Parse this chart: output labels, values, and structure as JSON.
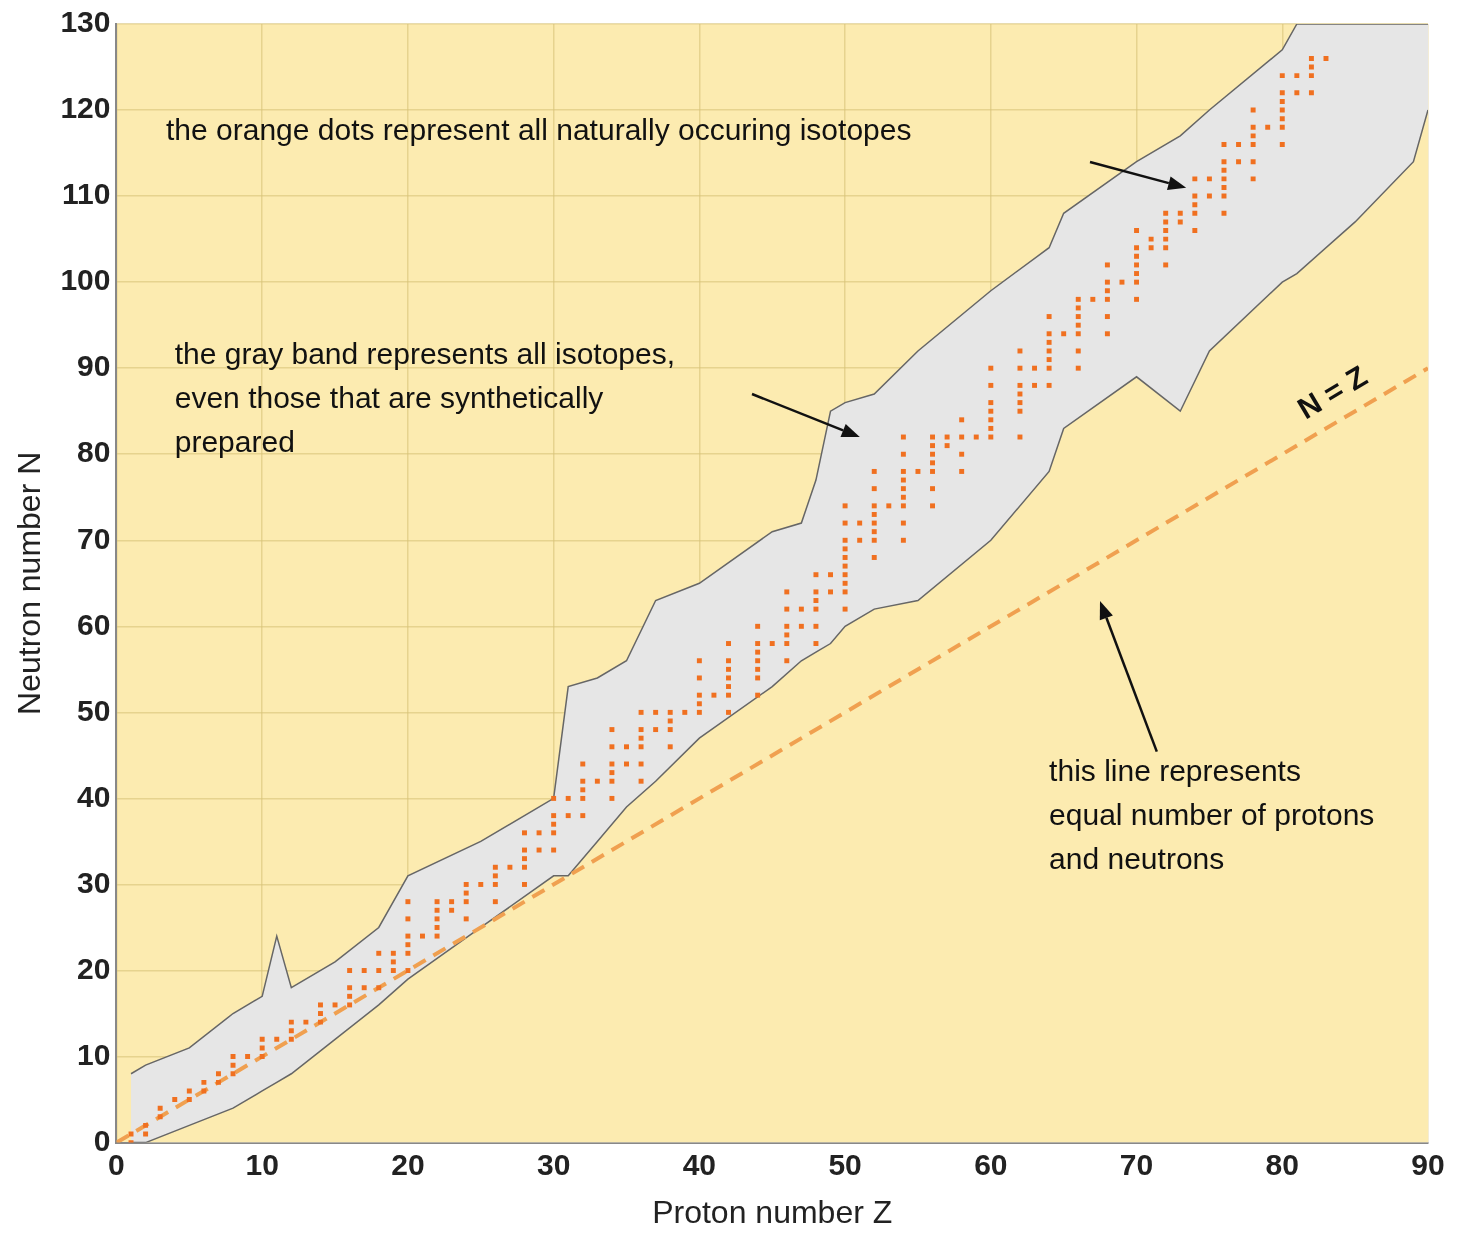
{
  "chart_data": {
    "type": "scatter",
    "xlabel": "Proton number Z",
    "ylabel": "Neutron number N",
    "xlim": [
      0,
      90
    ],
    "ylim": [
      0,
      130
    ],
    "xticks": [
      0,
      10,
      20,
      30,
      40,
      50,
      60,
      70,
      80,
      90
    ],
    "yticks": [
      0,
      10,
      20,
      30,
      40,
      50,
      60,
      70,
      80,
      90,
      100,
      110,
      120,
      130
    ],
    "grid": true,
    "legend": false,
    "series": [
      {
        "type": "area",
        "color": "#fcebb0",
        "x": [
          1,
          2,
          5,
          8,
          10,
          11,
          12,
          15,
          18,
          20,
          25,
          30,
          31,
          33,
          35,
          37,
          40,
          45,
          47,
          48,
          49,
          50,
          52,
          55,
          60,
          64,
          65,
          70,
          73,
          75,
          80,
          81,
          85,
          89,
          90
        ],
        "values": [
          0,
          0,
          2,
          4,
          6,
          7,
          8,
          12,
          16,
          19,
          25,
          31,
          31,
          35,
          39,
          42,
          47,
          53,
          56,
          57,
          58,
          60,
          62,
          63,
          70,
          78,
          83,
          89,
          85,
          92,
          100,
          101,
          107,
          114,
          120
        ]
      },
      {
        "type": "area",
        "color": "#e6e6e6",
        "x": [
          1,
          2,
          5,
          8,
          10,
          11,
          12,
          15,
          18,
          20,
          25,
          30,
          31,
          33,
          35,
          37,
          40,
          45,
          47,
          48,
          49,
          50,
          52,
          55,
          60,
          64,
          65,
          70,
          73,
          75,
          80,
          81,
          85,
          89,
          90
        ],
        "values": [
          8,
          9,
          11,
          15,
          17,
          24,
          18,
          21,
          25,
          31,
          35,
          40,
          53,
          54,
          56,
          63,
          65,
          71,
          72,
          77,
          85,
          86,
          87,
          92,
          99,
          104,
          108,
          114,
          117,
          120,
          127,
          130,
          130,
          130,
          130
        ]
      },
      {
        "type": "scatter",
        "color": "#f07020",
        "marker": "square",
        "x": [
          1,
          1,
          2,
          2,
          3,
          3,
          4,
          5,
          5,
          6,
          6,
          7,
          7,
          8,
          8,
          8,
          9,
          10,
          10,
          10,
          11,
          12,
          12,
          12,
          13,
          14,
          14,
          14,
          15,
          16,
          16,
          16,
          16,
          17,
          17,
          18,
          18,
          18,
          19,
          19,
          19,
          20,
          20,
          20,
          20,
          20,
          20,
          21,
          22,
          22,
          22,
          22,
          22,
          23,
          23,
          24,
          24,
          24,
          24,
          25,
          26,
          26,
          26,
          26,
          27,
          28,
          28,
          28,
          28,
          28,
          29,
          29,
          30,
          30,
          30,
          30,
          30,
          31,
          31,
          32,
          32,
          32,
          32,
          32,
          33,
          34,
          34,
          34,
          34,
          34,
          34,
          35,
          35,
          36,
          36,
          36,
          36,
          36,
          36,
          37,
          37,
          38,
          38,
          38,
          38,
          39,
          40,
          40,
          40,
          40,
          40,
          41,
          42,
          42,
          42,
          42,
          42,
          42,
          42,
          44,
          44,
          44,
          44,
          44,
          44,
          44,
          45,
          46,
          46,
          46,
          46,
          46,
          46,
          47,
          47,
          48,
          48,
          48,
          48,
          48,
          48,
          49,
          49,
          50,
          50,
          50,
          50,
          50,
          50,
          50,
          50,
          50,
          50,
          51,
          51,
          52,
          52,
          52,
          52,
          52,
          52,
          52,
          52,
          53,
          54,
          54,
          54,
          54,
          54,
          54,
          54,
          54,
          54,
          55,
          56,
          56,
          56,
          56,
          56,
          56,
          56,
          57,
          57,
          58,
          58,
          58,
          58,
          59,
          60,
          60,
          60,
          60,
          60,
          60,
          60,
          62,
          62,
          62,
          62,
          62,
          62,
          62,
          63,
          63,
          64,
          64,
          64,
          64,
          64,
          64,
          64,
          65,
          66,
          66,
          66,
          66,
          66,
          66,
          66,
          67,
          68,
          68,
          68,
          68,
          68,
          68,
          69,
          70,
          70,
          70,
          70,
          70,
          70,
          70,
          71,
          71,
          72,
          72,
          72,
          72,
          72,
          72,
          73,
          73,
          74,
          74,
          74,
          74,
          74,
          75,
          75,
          76,
          76,
          76,
          76,
          76,
          76,
          76,
          77,
          77,
          78,
          78,
          78,
          78,
          78,
          78,
          79,
          80,
          80,
          80,
          80,
          80,
          80,
          80,
          81,
          81,
          82,
          82,
          82,
          82,
          83
        ],
        "values": [
          0,
          1,
          1,
          2,
          3,
          4,
          5,
          5,
          6,
          6,
          7,
          7,
          8,
          8,
          9,
          10,
          10,
          10,
          11,
          12,
          12,
          12,
          13,
          14,
          14,
          14,
          15,
          16,
          16,
          16,
          17,
          18,
          20,
          18,
          20,
          18,
          20,
          22,
          20,
          21,
          22,
          20,
          22,
          23,
          24,
          26,
          28,
          24,
          24,
          25,
          26,
          27,
          28,
          27,
          28,
          26,
          28,
          29,
          30,
          30,
          28,
          30,
          31,
          32,
          32,
          30,
          32,
          33,
          34,
          36,
          34,
          36,
          34,
          36,
          37,
          38,
          40,
          38,
          40,
          38,
          40,
          41,
          42,
          44,
          42,
          40,
          42,
          43,
          44,
          46,
          48,
          44,
          46,
          42,
          44,
          46,
          47,
          48,
          50,
          48,
          50,
          46,
          48,
          49,
          50,
          50,
          50,
          51,
          52,
          54,
          56,
          52,
          50,
          52,
          53,
          54,
          55,
          56,
          58,
          52,
          54,
          55,
          56,
          57,
          58,
          60,
          58,
          56,
          58,
          59,
          60,
          62,
          64,
          60,
          62,
          58,
          60,
          62,
          63,
          64,
          66,
          64,
          66,
          62,
          64,
          65,
          66,
          67,
          68,
          69,
          70,
          72,
          74,
          70,
          72,
          68,
          70,
          71,
          72,
          73,
          74,
          76,
          78,
          74,
          70,
          72,
          74,
          75,
          76,
          77,
          78,
          80,
          82,
          78,
          74,
          76,
          78,
          79,
          80,
          81,
          82,
          81,
          82,
          78,
          80,
          82,
          84,
          82,
          82,
          83,
          84,
          85,
          86,
          88,
          90,
          82,
          85,
          86,
          87,
          88,
          90,
          92,
          88,
          90,
          88,
          90,
          91,
          92,
          93,
          94,
          96,
          94,
          90,
          92,
          94,
          95,
          96,
          97,
          98,
          98,
          94,
          96,
          98,
          99,
          100,
          102,
          100,
          98,
          100,
          101,
          102,
          103,
          104,
          106,
          104,
          105,
          102,
          104,
          105,
          106,
          107,
          108,
          107,
          108,
          106,
          108,
          109,
          110,
          112,
          110,
          112,
          108,
          110,
          111,
          112,
          113,
          114,
          116,
          114,
          116,
          112,
          114,
          116,
          117,
          118,
          120,
          118,
          116,
          118,
          119,
          120,
          121,
          122,
          124,
          122,
          124,
          122,
          124,
          125,
          126,
          126
        ]
      },
      {
        "type": "line",
        "color": "#f0a050",
        "line_style": "dashed",
        "marker": "none",
        "x": [
          0,
          90
        ],
        "values": [
          0,
          90
        ]
      }
    ],
    "annotations": [
      "the orange dots represent all naturally occuring isotopes",
      "the gray band represents all isotopes,\neven those that are synthetically\nprepared",
      "this line represents\nequal number of protons\nand neutrons",
      "N = Z"
    ]
  }
}
